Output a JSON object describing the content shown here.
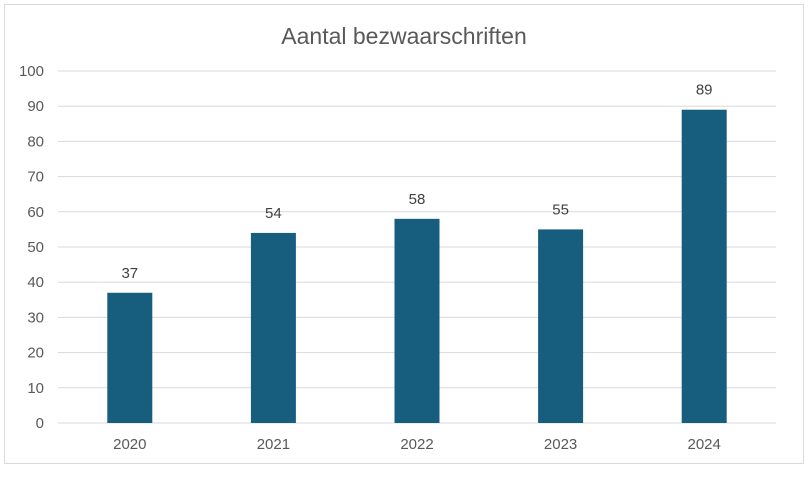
{
  "chart_data": {
    "type": "bar",
    "title": "Aantal bezwaarschriften",
    "categories": [
      "2020",
      "2021",
      "2022",
      "2023",
      "2024"
    ],
    "values": [
      37,
      54,
      58,
      55,
      89
    ],
    "data_labels": [
      "37",
      "54",
      "58",
      "55",
      "89"
    ],
    "xlabel": "",
    "ylabel": "",
    "ylim": [
      0,
      100
    ],
    "y_ticks": [
      0,
      10,
      20,
      30,
      40,
      50,
      60,
      70,
      80,
      90,
      100
    ],
    "grid": true,
    "legend": "none",
    "bar_color": "#175e7e",
    "gridline_color": "#d9d9d9"
  }
}
